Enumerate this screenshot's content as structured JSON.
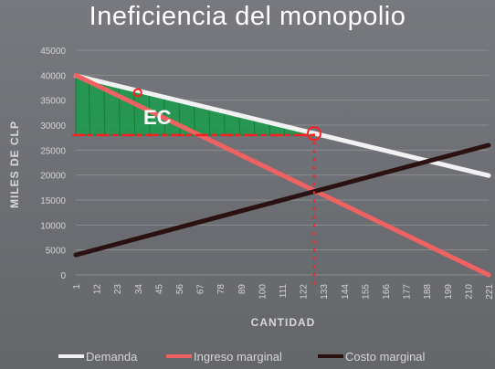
{
  "title": "Ineficiencia del monopolio",
  "annotation": "EC",
  "colors": {
    "demand": "#f2f2f2",
    "marginal_revenue": "#f06262",
    "marginal_cost": "#2a1212",
    "surplus_fill": "#1f9a4e",
    "markup": "#ff1f1f"
  },
  "chart_data": {
    "type": "line",
    "title": "Ineficiencia del monopolio",
    "xlabel": "CANTIDAD",
    "ylabel": "MILES DE CLP",
    "x": [
      1,
      12,
      23,
      34,
      45,
      56,
      67,
      78,
      89,
      100,
      111,
      122,
      133,
      144,
      155,
      166,
      177,
      188,
      199,
      210,
      221
    ],
    "ylim": [
      0,
      45000
    ],
    "yticks": [
      0,
      5000,
      10000,
      15000,
      20000,
      25000,
      30000,
      35000,
      40000,
      45000
    ],
    "grid": true,
    "legend_position": "bottom",
    "series": [
      {
        "name": "Demanda",
        "points": [
          [
            1,
            39900
          ],
          [
            221,
            19900
          ]
        ]
      },
      {
        "name": "Ingreso marginal",
        "points": [
          [
            1,
            40000
          ],
          [
            221,
            0
          ]
        ]
      },
      {
        "name": "Costo marginal",
        "points": [
          [
            1,
            4000
          ],
          [
            221,
            26000
          ]
        ]
      }
    ],
    "shaded_region": {
      "label": "EC",
      "points": [
        [
          1,
          39900
        ],
        [
          1,
          28000
        ],
        [
          128,
          28000
        ],
        [
          128,
          28300
        ]
      ]
    },
    "marker_line": {
      "x": 128,
      "from_y": 28300,
      "to_y": 0
    }
  }
}
